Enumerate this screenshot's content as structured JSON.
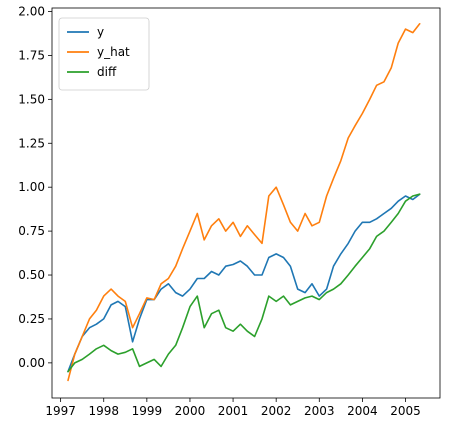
{
  "chart_data": {
    "type": "line",
    "title": "",
    "xlabel": "",
    "ylabel": "",
    "x_ticks": [
      "1997",
      "1998",
      "1999",
      "2000",
      "2001",
      "2002",
      "2003",
      "2004",
      "2005"
    ],
    "y_ticks": [
      "0.00",
      "0.25",
      "0.50",
      "0.75",
      "1.00",
      "1.25",
      "1.50",
      "1.75",
      "2.00"
    ],
    "xlim": [
      1996.8,
      2005.8
    ],
    "ylim": [
      -0.2,
      2.02
    ],
    "grid": false,
    "legend_position": "top-left",
    "series": [
      {
        "name": "y",
        "color": "#1f77b4",
        "x": [
          1997.17,
          1997.33,
          1997.5,
          1997.67,
          1997.83,
          1998.0,
          1998.17,
          1998.33,
          1998.5,
          1998.67,
          1998.83,
          1999.0,
          1999.17,
          1999.33,
          1999.5,
          1999.67,
          1999.83,
          2000.0,
          2000.17,
          2000.33,
          2000.5,
          2000.67,
          2000.83,
          2001.0,
          2001.17,
          2001.33,
          2001.5,
          2001.67,
          2001.83,
          2002.0,
          2002.17,
          2002.33,
          2002.5,
          2002.67,
          2002.83,
          2003.0,
          2003.17,
          2003.33,
          2003.5,
          2003.67,
          2003.83,
          2004.0,
          2004.17,
          2004.33,
          2004.5,
          2004.67,
          2004.83,
          2005.0,
          2005.17,
          2005.33
        ],
        "values": [
          -0.05,
          0.05,
          0.15,
          0.2,
          0.22,
          0.25,
          0.33,
          0.35,
          0.32,
          0.12,
          0.25,
          0.36,
          0.36,
          0.42,
          0.45,
          0.4,
          0.38,
          0.42,
          0.48,
          0.48,
          0.52,
          0.5,
          0.55,
          0.56,
          0.58,
          0.55,
          0.5,
          0.5,
          0.6,
          0.62,
          0.6,
          0.55,
          0.42,
          0.4,
          0.45,
          0.38,
          0.42,
          0.55,
          0.62,
          0.68,
          0.75,
          0.8,
          0.8,
          0.82,
          0.85,
          0.88,
          0.92,
          0.95,
          0.93,
          0.96
        ]
      },
      {
        "name": "y_hat",
        "color": "#ff7f0e",
        "x": [
          1997.17,
          1997.33,
          1997.5,
          1997.67,
          1997.83,
          1998.0,
          1998.17,
          1998.33,
          1998.5,
          1998.67,
          1998.83,
          1999.0,
          1999.17,
          1999.33,
          1999.5,
          1999.67,
          1999.83,
          2000.0,
          2000.17,
          2000.33,
          2000.5,
          2000.67,
          2000.83,
          2001.0,
          2001.17,
          2001.33,
          2001.5,
          2001.67,
          2001.83,
          2002.0,
          2002.17,
          2002.33,
          2002.5,
          2002.67,
          2002.83,
          2003.0,
          2003.17,
          2003.33,
          2003.5,
          2003.67,
          2003.83,
          2004.0,
          2004.17,
          2004.33,
          2004.5,
          2004.67,
          2004.83,
          2005.0,
          2005.17,
          2005.33
        ],
        "values": [
          -0.1,
          0.05,
          0.15,
          0.25,
          0.3,
          0.38,
          0.42,
          0.38,
          0.35,
          0.2,
          0.28,
          0.37,
          0.36,
          0.45,
          0.48,
          0.55,
          0.65,
          0.75,
          0.85,
          0.7,
          0.78,
          0.82,
          0.75,
          0.8,
          0.72,
          0.78,
          0.73,
          0.68,
          0.95,
          1.0,
          0.9,
          0.8,
          0.75,
          0.85,
          0.78,
          0.8,
          0.95,
          1.05,
          1.15,
          1.28,
          1.35,
          1.42,
          1.5,
          1.58,
          1.6,
          1.68,
          1.82,
          1.9,
          1.88,
          1.93
        ]
      },
      {
        "name": "diff",
        "color": "#2ca02c",
        "x": [
          1997.17,
          1997.33,
          1997.5,
          1997.67,
          1997.83,
          1998.0,
          1998.17,
          1998.33,
          1998.5,
          1998.67,
          1998.83,
          1999.0,
          1999.17,
          1999.33,
          1999.5,
          1999.67,
          1999.83,
          2000.0,
          2000.17,
          2000.33,
          2000.5,
          2000.67,
          2000.83,
          2001.0,
          2001.17,
          2001.33,
          2001.5,
          2001.67,
          2001.83,
          2002.0,
          2002.17,
          2002.33,
          2002.5,
          2002.67,
          2002.83,
          2003.0,
          2003.17,
          2003.33,
          2003.5,
          2003.67,
          2003.83,
          2004.0,
          2004.17,
          2004.33,
          2004.5,
          2004.67,
          2004.83,
          2005.0,
          2005.17,
          2005.33
        ],
        "values": [
          -0.05,
          0.0,
          0.02,
          0.05,
          0.08,
          0.1,
          0.07,
          0.05,
          0.06,
          0.08,
          -0.02,
          0.0,
          0.02,
          -0.02,
          0.05,
          0.1,
          0.2,
          0.32,
          0.38,
          0.2,
          0.28,
          0.3,
          0.2,
          0.18,
          0.22,
          0.18,
          0.15,
          0.25,
          0.38,
          0.35,
          0.38,
          0.33,
          0.35,
          0.37,
          0.38,
          0.36,
          0.4,
          0.42,
          0.45,
          0.5,
          0.55,
          0.6,
          0.65,
          0.72,
          0.75,
          0.8,
          0.85,
          0.92,
          0.95,
          0.96
        ]
      }
    ]
  }
}
